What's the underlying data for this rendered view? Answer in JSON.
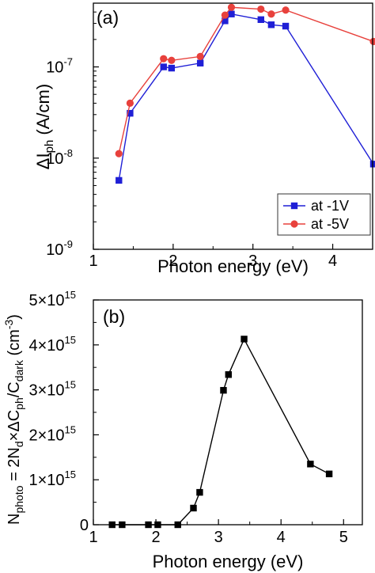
{
  "chart_data": [
    {
      "type": "line",
      "panel_label": "(a)",
      "xlabel": "Photon energy (eV)",
      "ylabel": {
        "base": "ΔI",
        "sub": "ph",
        "unit": " (A/cm)"
      },
      "xlim": [
        1,
        4.5
      ],
      "ylim": [
        1e-09,
        5e-07
      ],
      "yscale": "log",
      "x_ticks": [
        1,
        2,
        3,
        4
      ],
      "x_tick_labels": [
        "1",
        "2",
        "3",
        "4"
      ],
      "y_ticks": [
        {
          "value": 1e-09,
          "base": "10",
          "exp": "-9"
        },
        {
          "value": 1e-08,
          "base": "10",
          "exp": "-8"
        },
        {
          "value": 1e-07,
          "base": "10",
          "exp": "-7"
        }
      ],
      "legend_position": "bottom-right",
      "series": [
        {
          "name": "at -1V",
          "color": "#1f1fd6",
          "marker": "square",
          "x": [
            1.32,
            1.46,
            1.88,
            1.98,
            2.34,
            2.65,
            2.73,
            3.1,
            3.23,
            3.41,
            4.51
          ],
          "y": [
            5.7e-09,
            3.1e-08,
            1e-07,
            9.7e-08,
            1.1e-07,
            3.2e-07,
            3.8e-07,
            3.3e-07,
            2.9e-07,
            2.8e-07,
            8.6e-09
          ]
        },
        {
          "name": "at -5V",
          "color": "#e8413c",
          "marker": "circle",
          "x": [
            1.32,
            1.46,
            1.88,
            1.98,
            2.34,
            2.65,
            2.73,
            3.1,
            3.23,
            3.41,
            4.51
          ],
          "y": [
            1.12e-08,
            4e-08,
            1.23e-07,
            1.18e-07,
            1.3e-07,
            3.7e-07,
            4.5e-07,
            4.3e-07,
            3.8e-07,
            4.2e-07,
            1.9e-07
          ]
        }
      ]
    },
    {
      "type": "line",
      "panel_label": "(b)",
      "xlabel": "Photon energy (eV)",
      "ylabel_parts": [
        "N",
        "photo",
        " = 2N",
        "d",
        "×ΔC",
        "ph",
        "/C",
        "dark",
        " (cm",
        "-3",
        ")"
      ],
      "xlim": [
        1,
        5.3
      ],
      "ylim": [
        0,
        5000000000000000.0
      ],
      "x_ticks": [
        1,
        2,
        3,
        4,
        5
      ],
      "x_tick_labels": [
        "1",
        "2",
        "3",
        "4",
        "5"
      ],
      "y_ticks": [
        {
          "value": 0,
          "base": "0",
          "exp": ""
        },
        {
          "value": 1000000000000000.0,
          "base": "1×10",
          "exp": "15"
        },
        {
          "value": 2000000000000000.0,
          "base": "2×10",
          "exp": "15"
        },
        {
          "value": 3000000000000000.0,
          "base": "3×10",
          "exp": "15"
        },
        {
          "value": 4000000000000000.0,
          "base": "4×10",
          "exp": "15"
        },
        {
          "value": 5000000000000000.0,
          "base": "5×10",
          "exp": "15"
        }
      ],
      "series": [
        {
          "color": "#000000",
          "marker": "square",
          "x": [
            1.3,
            1.46,
            1.88,
            2.03,
            2.35,
            2.6,
            2.7,
            3.08,
            3.16,
            3.41,
            4.47,
            4.77
          ],
          "y": [
            0,
            0,
            0,
            0,
            0,
            370000000000000.0,
            720000000000000.0,
            2990000000000000.0,
            3340000000000000.0,
            4130000000000000.0,
            1350000000000000.0,
            1130000000000000.0
          ]
        }
      ]
    }
  ]
}
